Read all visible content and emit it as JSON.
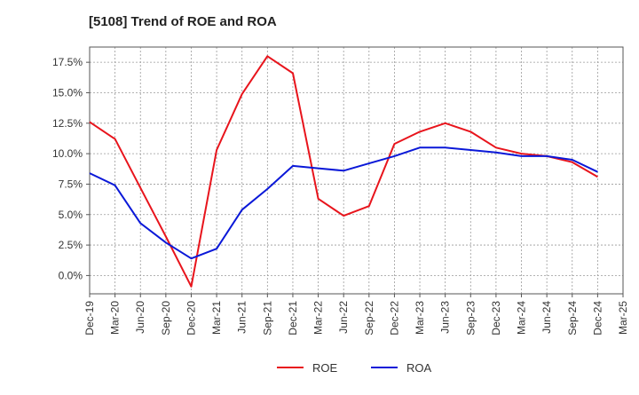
{
  "chart_data": {
    "type": "line",
    "title": "[5108]  Trend of ROE and ROA",
    "xlabel": "",
    "ylabel": "",
    "x": [
      "Dec-19",
      "Mar-20",
      "Jun-20",
      "Sep-20",
      "Dec-20",
      "Mar-21",
      "Jun-21",
      "Sep-21",
      "Dec-21",
      "Mar-22",
      "Jun-22",
      "Sep-22",
      "Dec-22",
      "Mar-23",
      "Jun-23",
      "Sep-23",
      "Dec-23",
      "Mar-24",
      "Jun-24",
      "Sep-24",
      "Dec-24",
      "Mar-25"
    ],
    "ylim": [
      -1.5,
      18.75
    ],
    "yticks": [
      0.0,
      2.5,
      5.0,
      7.5,
      10.0,
      12.5,
      15.0,
      17.5
    ],
    "ytick_labels": [
      "0.0%",
      "2.5%",
      "5.0%",
      "7.5%",
      "10.0%",
      "12.5%",
      "15.0%",
      "17.5%"
    ],
    "grid": true,
    "legend": "bottom-center",
    "series": [
      {
        "name": "ROE",
        "color": "#e8141c",
        "values": [
          12.6,
          11.2,
          7.2,
          3.2,
          -0.9,
          10.3,
          14.9,
          18.0,
          16.6,
          6.3,
          4.9,
          5.7,
          10.8,
          11.8,
          12.5,
          11.8,
          10.5,
          10.0,
          9.8,
          9.3,
          8.1,
          null
        ]
      },
      {
        "name": "ROA",
        "color": "#0a18d8",
        "values": [
          8.4,
          7.4,
          4.3,
          2.7,
          1.4,
          2.2,
          5.4,
          7.1,
          9.0,
          8.8,
          8.6,
          9.2,
          9.8,
          10.5,
          10.5,
          10.3,
          10.1,
          9.8,
          9.8,
          9.5,
          8.5,
          null
        ]
      }
    ]
  }
}
